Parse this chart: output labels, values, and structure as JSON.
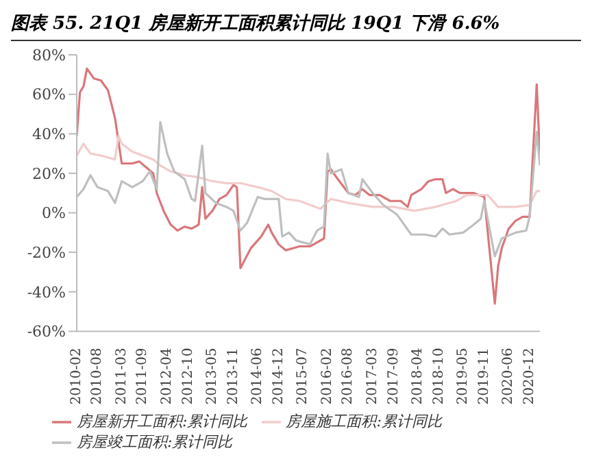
{
  "chart_data": {
    "type": "line",
    "title": "图表 55. 21Q1 房屋新开工面积累计同比 19Q1 下滑 6.6%",
    "series": [
      {
        "name": "房屋新开工面积:累计同比",
        "color": "#d9777a",
        "x": [
          "2010-02",
          "2010-03",
          "2010-04",
          "2010-05",
          "2010-07",
          "2010-09",
          "2010-11",
          "2011-01",
          "2011-02",
          "2011-03",
          "2011-06",
          "2011-08",
          "2011-10",
          "2011-12",
          "2012-01",
          "2012-03",
          "2012-05",
          "2012-07",
          "2012-09",
          "2012-11",
          "2013-01",
          "2013-02",
          "2013-03",
          "2013-05",
          "2013-07",
          "2013-09",
          "2013-11",
          "2013-12",
          "2014-01",
          "2014-04",
          "2014-07",
          "2014-09",
          "2014-10",
          "2014-12",
          "2015-02",
          "2015-06",
          "2015-09",
          "2015-11",
          "2016-01",
          "2016-02",
          "2016-03",
          "2016-05",
          "2016-08",
          "2016-10",
          "2016-12",
          "2017-02",
          "2017-05",
          "2017-08",
          "2017-11",
          "2018-01",
          "2018-02",
          "2018-05",
          "2018-07",
          "2018-09",
          "2018-11",
          "2018-12",
          "2019-02",
          "2019-04",
          "2019-08",
          "2019-11",
          "2020-02",
          "2020-03",
          "2020-04",
          "2020-06",
          "2020-08",
          "2020-10",
          "2020-12",
          "2021-02",
          "2021-03"
        ],
        "values": [
          39,
          61,
          64,
          73,
          68,
          67,
          62,
          48,
          36,
          25,
          25,
          26,
          23,
          20,
          10,
          1,
          -6,
          -9,
          -7,
          -8,
          -6,
          13,
          -3,
          1,
          7,
          9,
          14,
          13,
          -28,
          -18,
          -12,
          -6,
          -10,
          -16,
          -19,
          -17,
          -17,
          -15,
          -13,
          21,
          22,
          17,
          10,
          9,
          12,
          9,
          9,
          6,
          6,
          3,
          9,
          12,
          16,
          17,
          17,
          10,
          12,
          10,
          10,
          8,
          -46,
          -27,
          -18,
          -8,
          -4,
          -2,
          -2,
          65,
          28
        ]
      },
      {
        "name": "房屋施工面积:累计同比",
        "color": "#f2cccc",
        "x": [
          "2010-02",
          "2010-04",
          "2010-06",
          "2010-09",
          "2011-01",
          "2011-02",
          "2011-03",
          "2011-06",
          "2011-09",
          "2011-12",
          "2012-02",
          "2012-05",
          "2012-09",
          "2013-01",
          "2013-05",
          "2013-09",
          "2014-01",
          "2014-06",
          "2014-10",
          "2015-02",
          "2015-06",
          "2015-12",
          "2016-03",
          "2016-08",
          "2017-03",
          "2017-09",
          "2018-03",
          "2018-09",
          "2019-03",
          "2019-06",
          "2019-12",
          "2020-03",
          "2020-08",
          "2020-12",
          "2021-02",
          "2021-03"
        ],
        "values": [
          29,
          35,
          30,
          29,
          27,
          39,
          35,
          31,
          29,
          27,
          24,
          21,
          19,
          18,
          16,
          15,
          15,
          13,
          11,
          7,
          6,
          2,
          7,
          5,
          3,
          3,
          1,
          3,
          6,
          9,
          9,
          3,
          3,
          4,
          11,
          11
        ]
      },
      {
        "name": "房屋竣工面积:累计同比",
        "color": "#bfbfbf",
        "x": [
          "2010-02",
          "2010-04",
          "2010-06",
          "2010-08",
          "2010-11",
          "2011-01",
          "2011-03",
          "2011-06",
          "2011-09",
          "2011-11",
          "2012-01",
          "2012-02",
          "2012-04",
          "2012-06",
          "2012-09",
          "2012-11",
          "2012-12",
          "2013-02",
          "2013-03",
          "2013-06",
          "2013-09",
          "2013-11",
          "2014-01",
          "2014-03",
          "2014-06",
          "2014-08",
          "2014-12",
          "2015-01",
          "2015-03",
          "2015-05",
          "2015-09",
          "2015-11",
          "2016-01",
          "2016-02",
          "2016-03",
          "2016-06",
          "2016-08",
          "2016-11",
          "2016-12",
          "2017-03",
          "2017-06",
          "2017-10",
          "2017-12",
          "2018-02",
          "2018-06",
          "2018-09",
          "2018-11",
          "2019-01",
          "2019-05",
          "2019-08",
          "2019-10",
          "2019-11",
          "2020-02",
          "2020-04",
          "2020-08",
          "2020-11",
          "2020-12",
          "2021-02",
          "2021-03"
        ],
        "values": [
          8,
          12,
          19,
          13,
          11,
          5,
          16,
          13,
          16,
          21,
          12,
          46,
          30,
          21,
          17,
          7,
          6,
          34,
          10,
          5,
          3,
          1,
          -9,
          -5,
          8,
          7,
          7,
          -12,
          -10,
          -14,
          -16,
          -9,
          -7,
          30,
          20,
          22,
          10,
          8,
          17,
          10,
          4,
          -1,
          -6,
          -11,
          -11,
          -12,
          -8,
          -11,
          -10,
          -6,
          -3,
          6,
          -22,
          -13,
          -10,
          -9,
          -2,
          41,
          24
        ]
      }
    ],
    "xlim": [
      "2010-02",
      "2021-03"
    ],
    "xticks": [
      "2010-02",
      "2010-08",
      "2011-03",
      "2011-09",
      "2012-04",
      "2012-10",
      "2013-05",
      "2013-11",
      "2014-06",
      "2014-12",
      "2015-07",
      "2016-02",
      "2016-08",
      "2017-03",
      "2017-09",
      "2018-04",
      "2018-10",
      "2019-05",
      "2019-11",
      "2020-06",
      "2020-12"
    ],
    "ylim": [
      -60,
      80
    ],
    "yticks": [
      {
        "value": -60,
        "label": "-60%"
      },
      {
        "value": -40,
        "label": "-40%"
      },
      {
        "value": -20,
        "label": "-20%"
      },
      {
        "value": 0,
        "label": "0%"
      },
      {
        "value": 20,
        "label": "20%"
      },
      {
        "value": 40,
        "label": "40%"
      },
      {
        "value": 60,
        "label": "60%"
      },
      {
        "value": 80,
        "label": "80%"
      }
    ],
    "grid": false,
    "legend": "bottom",
    "marker": "none",
    "line_style": "solid"
  }
}
